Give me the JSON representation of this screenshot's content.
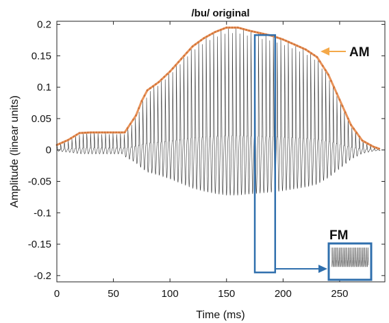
{
  "chart_data": {
    "type": "line",
    "title": "/bu/ original",
    "xlabel": "Time (ms)",
    "ylabel": "Amplitude (linear units)",
    "xlim": [
      0,
      290
    ],
    "ylim": [
      -0.21,
      0.205
    ],
    "x_ticks": [
      0,
      50,
      100,
      150,
      200,
      250
    ],
    "x_tick_labels": [
      "0",
      "50",
      "100",
      "150",
      "200",
      "250"
    ],
    "y_ticks": [
      0.2,
      0.15,
      0.1,
      0.05,
      0,
      -0.05,
      -0.1,
      -0.15,
      -0.2
    ],
    "y_tick_labels": [
      "0.2",
      "0.15",
      "0.1",
      "0.05",
      "0",
      "-0.05",
      "-0.1",
      "-0.15",
      "-0.2"
    ],
    "grid": false,
    "series": [
      {
        "name": "AM",
        "color": "#e8935a",
        "x": [
          0,
          10,
          20,
          30,
          40,
          50,
          60,
          70,
          75,
          80,
          90,
          100,
          110,
          120,
          130,
          140,
          150,
          160,
          170,
          180,
          190,
          200,
          210,
          220,
          230,
          240,
          250,
          260,
          270,
          280,
          285
        ],
        "values": [
          0.008,
          0.016,
          0.027,
          0.028,
          0.028,
          0.028,
          0.028,
          0.055,
          0.078,
          0.095,
          0.108,
          0.125,
          0.145,
          0.165,
          0.178,
          0.188,
          0.195,
          0.195,
          0.19,
          0.186,
          0.182,
          0.176,
          0.168,
          0.16,
          0.148,
          0.12,
          0.08,
          0.04,
          0.015,
          0.005,
          0.002
        ]
      }
    ],
    "annotations": {
      "am_label": "AM",
      "fm_label": "FM",
      "fm_box_range_x": [
        175,
        193
      ],
      "fm_box_range_y": [
        -0.195,
        0.183
      ]
    },
    "colors": {
      "waveform": "#333333",
      "envelope": "#e8935a",
      "fm_box": "#2f6fad",
      "arrow_am": "#f4a94a"
    }
  }
}
